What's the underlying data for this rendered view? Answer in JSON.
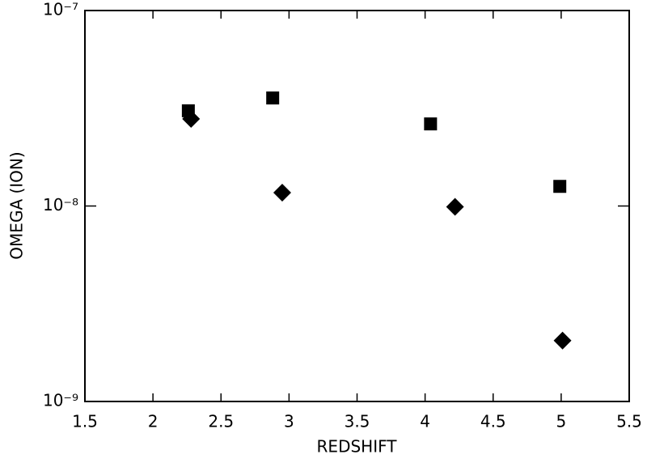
{
  "chart_data": {
    "type": "scatter",
    "x_label": "REDSHIFT",
    "y_label": "OMEGA (ION)",
    "xlim": [
      1.5,
      5.5
    ],
    "xticks": [
      1.5,
      2.0,
      2.5,
      3.0,
      3.5,
      4.0,
      4.5,
      5.0,
      5.5
    ],
    "ylim": [
      1e-09,
      1e-07
    ],
    "log_y": true,
    "yticks": [
      {
        "value": 1e-09,
        "label": "10⁻⁹"
      },
      {
        "value": 1e-08,
        "label": "10⁻⁸"
      },
      {
        "value": 1e-07,
        "label": "10⁻⁷"
      }
    ],
    "series": [
      {
        "marker": "square",
        "color": "#000000",
        "x": [
          2.26,
          2.88,
          4.04,
          4.99
        ],
        "values": [
          3.07e-08,
          3.57e-08,
          2.63e-08,
          1.26e-08
        ]
      },
      {
        "marker": "diamond",
        "color": "#000000",
        "x": [
          2.28,
          2.95,
          4.22,
          5.01
        ],
        "values": [
          2.79e-08,
          1.17e-08,
          9.9e-09,
          2.05e-09
        ]
      }
    ]
  }
}
